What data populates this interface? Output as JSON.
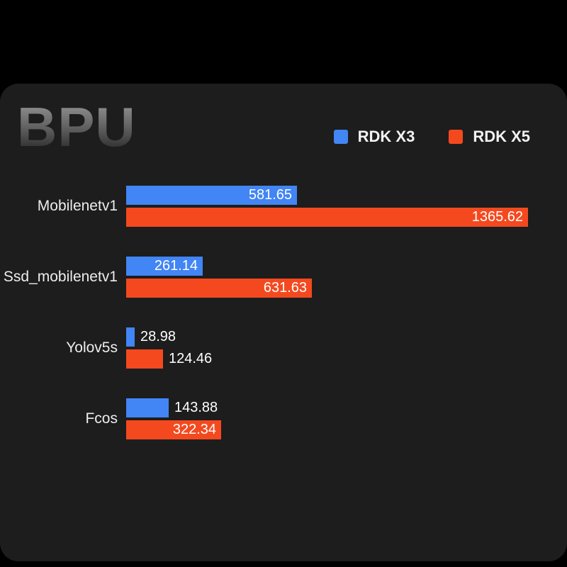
{
  "title": "BPU",
  "colors": {
    "background": "#000000",
    "panel": "#1d1d1d",
    "rdk_x3": "#4285f4",
    "rdk_x5": "#f4491f",
    "text": "#ffffff"
  },
  "chart_data": {
    "type": "bar",
    "orientation": "horizontal",
    "title": "BPU",
    "categories": [
      "Mobilenetv1",
      "Ssd_mobilenetv1",
      "Yolov5s",
      "Fcos"
    ],
    "series": [
      {
        "name": "RDK X3",
        "color": "#4285f4",
        "values": [
          581.65,
          261.14,
          28.98,
          143.88
        ]
      },
      {
        "name": "RDK X5",
        "color": "#f4491f",
        "values": [
          1365.62,
          631.63,
          124.46,
          322.34
        ]
      }
    ],
    "xlim": [
      0,
      1365.62
    ],
    "value_labels": true,
    "legend_position": "top-right",
    "grid": false
  }
}
